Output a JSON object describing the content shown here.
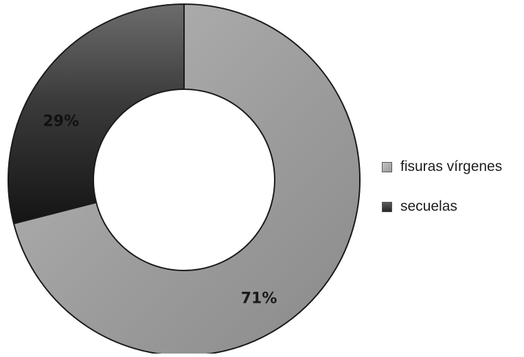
{
  "chart_data": {
    "type": "pie",
    "donut": true,
    "categories": [
      "fisuras vírgenes",
      "secuelas"
    ],
    "values": [
      71,
      29
    ],
    "data_labels": [
      "71%",
      "29%"
    ],
    "colors": [
      "#9a9a9a",
      "#262626"
    ],
    "legend_placement": "right",
    "title": "",
    "xlabel": "",
    "ylabel": ""
  }
}
